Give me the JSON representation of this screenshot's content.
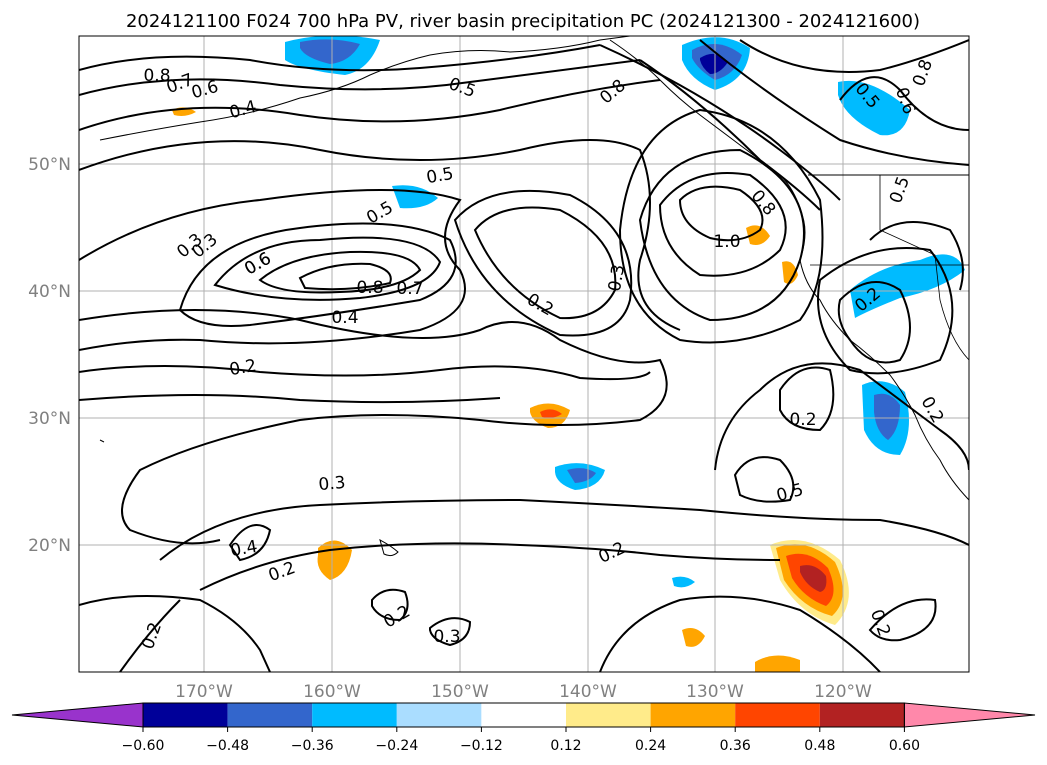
{
  "title": "2024121100 F024 700 hPa PV, river basin precipitation PC (2024121300 - 2024121600)",
  "map": {
    "lon_labels": [
      "170°W",
      "160°W",
      "150°W",
      "140°W",
      "130°W",
      "120°W"
    ],
    "lat_labels": [
      "50°N",
      "40°N",
      "30°N",
      "20°N"
    ],
    "contour_labels": [
      "0.8",
      "0.7",
      "0.6",
      "0.4",
      "0.5",
      "0.8",
      "0.3",
      "0.6",
      "0.5",
      "0.5",
      "0.3",
      "0.6",
      "0.8",
      "0.7",
      "0.4",
      "0.2",
      "0.3",
      "1.0",
      "0.8",
      "0.2",
      "0.5",
      "0.6",
      "0.8",
      "0.5",
      "0.2",
      "0.2",
      "0.3",
      "0.4",
      "0.2",
      "0.2",
      "0.2",
      "0.3",
      "0.2",
      "0.2",
      "0.5",
      "0.2"
    ],
    "grid": true
  },
  "colorbar": {
    "tick_labels": [
      "−0.60",
      "−0.48",
      "−0.36",
      "−0.24",
      "−0.12",
      "0.12",
      "0.24",
      "0.36",
      "0.48",
      "0.60"
    ],
    "colors": [
      "#9933cc",
      "#000099",
      "#3366cc",
      "#00bbff",
      "#aaddff",
      "#ffffff",
      "#ffeb8a",
      "#ffa500",
      "#ff4500",
      "#b22222",
      "#ff88aa"
    ]
  }
}
